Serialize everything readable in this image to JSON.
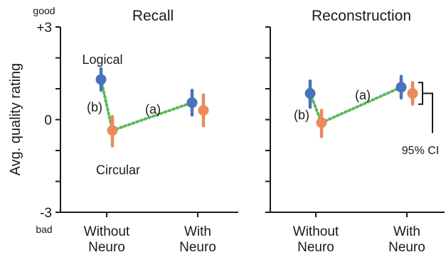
{
  "chart_data": {
    "type": "scatter",
    "ylabel": "Avg. quality rating",
    "ylim": [
      -3,
      3
    ],
    "yticks": [
      "+3",
      "0",
      "-3"
    ],
    "y_top_label": "good",
    "y_bottom_label": "bad",
    "categories": [
      "Without\nNeuro",
      "With\nNeuro"
    ],
    "colors": {
      "blue": "#4a72b8",
      "orange": "#e98a5a",
      "green": "#5cb85c"
    },
    "panels": [
      {
        "title": "Recall",
        "series": [
          {
            "label": "Logical",
            "values": [
              1.3,
              0.55
            ],
            "ci_low": [
              0.95,
              0.15
            ],
            "ci_high": [
              1.65,
              0.95
            ]
          },
          {
            "label": "Circular",
            "values": [
              -0.35,
              0.3
            ],
            "ci_low": [
              -0.85,
              -0.2
            ],
            "ci_high": [
              0.1,
              0.8
            ]
          }
        ],
        "annotations": [
          "(a)",
          "(b)"
        ]
      },
      {
        "title": "Reconstruction",
        "series": [
          {
            "values": [
              0.85,
              1.05
            ],
            "ci_low": [
              0.4,
              0.7
            ],
            "ci_high": [
              1.25,
              1.4
            ]
          },
          {
            "values": [
              -0.1,
              0.85
            ],
            "ci_low": [
              -0.55,
              0.5
            ],
            "ci_high": [
              0.3,
              1.2
            ]
          }
        ],
        "annotations": [
          "(a)",
          "(b)"
        ],
        "ci_legend": "95% CI"
      }
    ]
  }
}
